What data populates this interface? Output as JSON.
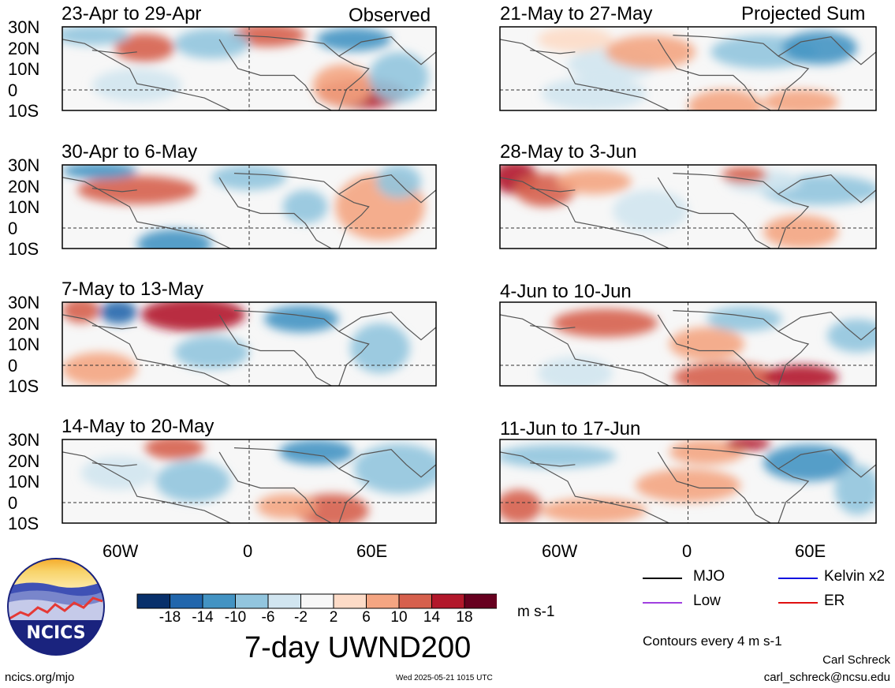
{
  "panels": {
    "observed_header": "Observed",
    "projected_header": "Projected Sum",
    "observed": [
      {
        "title": "23-Apr to 29-Apr"
      },
      {
        "title": "30-Apr to 6-May"
      },
      {
        "title": "7-May to 13-May"
      },
      {
        "title": "14-May to 20-May"
      }
    ],
    "projected": [
      {
        "title": "21-May to 27-May"
      },
      {
        "title": "28-May to 3-Jun"
      },
      {
        "title": "4-Jun to 10-Jun"
      },
      {
        "title": "11-Jun to 17-Jun"
      }
    ]
  },
  "axes": {
    "lat_ticks": [
      "30N",
      "20N",
      "10N",
      "0",
      "10S"
    ],
    "lon_ticks": [
      "60W",
      "0",
      "60E"
    ]
  },
  "colorbar": {
    "labels": [
      "-18",
      "-14",
      "-10",
      "-6",
      "-2",
      "2",
      "6",
      "10",
      "14",
      "18"
    ],
    "colors": [
      "#08306b",
      "#2166ac",
      "#4393c3",
      "#92c5de",
      "#d1e5f0",
      "#f7f7f7",
      "#fddbc7",
      "#f4a582",
      "#d6604d",
      "#b2182b",
      "#67001f"
    ],
    "units": "m s-1"
  },
  "main_title": "7-day UWND200",
  "legend": {
    "items": [
      {
        "label": "MJO",
        "color": "#000000"
      },
      {
        "label": "Kelvin x2",
        "color": "#1010e0"
      },
      {
        "label": "Low",
        "color": "#a040e0"
      },
      {
        "label": "ER",
        "color": "#e01010"
      }
    ],
    "contours_note": "Contours every 4 m s-1"
  },
  "logo": {
    "text": "NCICS"
  },
  "footer": {
    "url": "ncics.org/mjo",
    "timestamp": "Wed 2025-05-21 1015 UTC",
    "author": "Carl Schreck",
    "email": "carl_schreck@ncsu.edu"
  }
}
